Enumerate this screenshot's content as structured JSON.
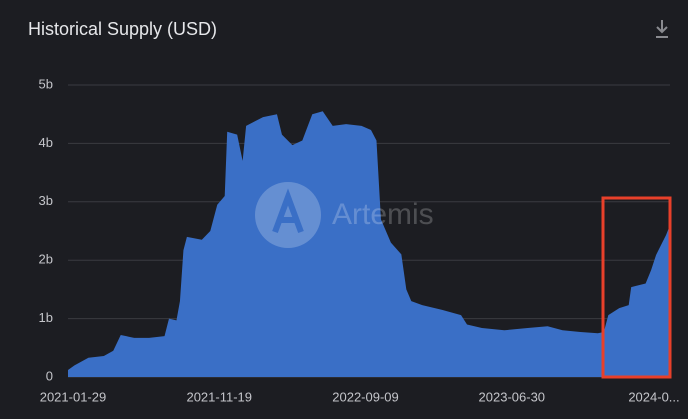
{
  "chart_data": {
    "type": "area",
    "title": "Historical Supply (USD)",
    "watermark": "Artemis",
    "color": "#3a6fc6",
    "highlight_color": "#e8402a",
    "grid": true,
    "xlim": [
      "2021-01-19",
      "2024-05-13"
    ],
    "ylim": [
      0,
      5
    ],
    "yticks": [
      {
        "value": 0,
        "label": "0"
      },
      {
        "value": 1,
        "label": "1b"
      },
      {
        "value": 2,
        "label": "2b"
      },
      {
        "value": 3,
        "label": "3b"
      },
      {
        "value": 4,
        "label": "4b"
      },
      {
        "value": 5,
        "label": "5b"
      }
    ],
    "xticks": [
      "2021-01-29",
      "2021-11-19",
      "2022-09-09",
      "2023-06-30",
      "2024-0..."
    ],
    "x": [
      "2021-01-19",
      "2021-02-01",
      "2021-03-01",
      "2021-04-01",
      "2021-04-20",
      "2021-05-05",
      "2021-06-01",
      "2021-07-01",
      "2021-08-01",
      "2021-08-10",
      "2021-08-25",
      "2021-09-01",
      "2021-09-08",
      "2021-09-15",
      "2021-10-15",
      "2021-11-01",
      "2021-11-15",
      "2021-11-30",
      "2021-12-05",
      "2021-12-25",
      "2022-01-05",
      "2022-01-12",
      "2022-02-15",
      "2022-03-15",
      "2022-03-25",
      "2022-04-15",
      "2022-05-05",
      "2022-05-25",
      "2022-06-15",
      "2022-07-05",
      "2022-08-01",
      "2022-09-01",
      "2022-09-20",
      "2022-10-01",
      "2022-10-10",
      "2022-10-30",
      "2022-11-20",
      "2022-11-30",
      "2022-12-10",
      "2023-01-01",
      "2023-02-10",
      "2023-03-20",
      "2023-04-01",
      "2023-05-01",
      "2023-06-15",
      "2023-08-01",
      "2023-09-10",
      "2023-10-10",
      "2023-11-15",
      "2023-12-20",
      "2024-01-01",
      "2024-01-10",
      "2024-02-01",
      "2024-02-20",
      "2024-02-25",
      "2024-03-25",
      "2024-04-05",
      "2024-04-15",
      "2024-04-25",
      "2024-05-05",
      "2024-05-13"
    ],
    "values": [
      0.12,
      0.2,
      0.33,
      0.36,
      0.45,
      0.72,
      0.67,
      0.67,
      0.7,
      1.0,
      0.97,
      1.3,
      2.17,
      2.4,
      2.35,
      2.5,
      2.95,
      3.1,
      4.2,
      4.15,
      3.7,
      4.3,
      4.45,
      4.5,
      4.15,
      3.97,
      4.05,
      4.5,
      4.55,
      4.3,
      4.33,
      4.3,
      4.23,
      4.05,
      2.7,
      2.3,
      2.1,
      1.5,
      1.3,
      1.23,
      1.15,
      1.06,
      0.9,
      0.84,
      0.8,
      0.84,
      0.87,
      0.8,
      0.77,
      0.75,
      0.77,
      1.06,
      1.18,
      1.23,
      1.54,
      1.6,
      1.83,
      2.09,
      2.26,
      2.43,
      2.6
    ]
  }
}
